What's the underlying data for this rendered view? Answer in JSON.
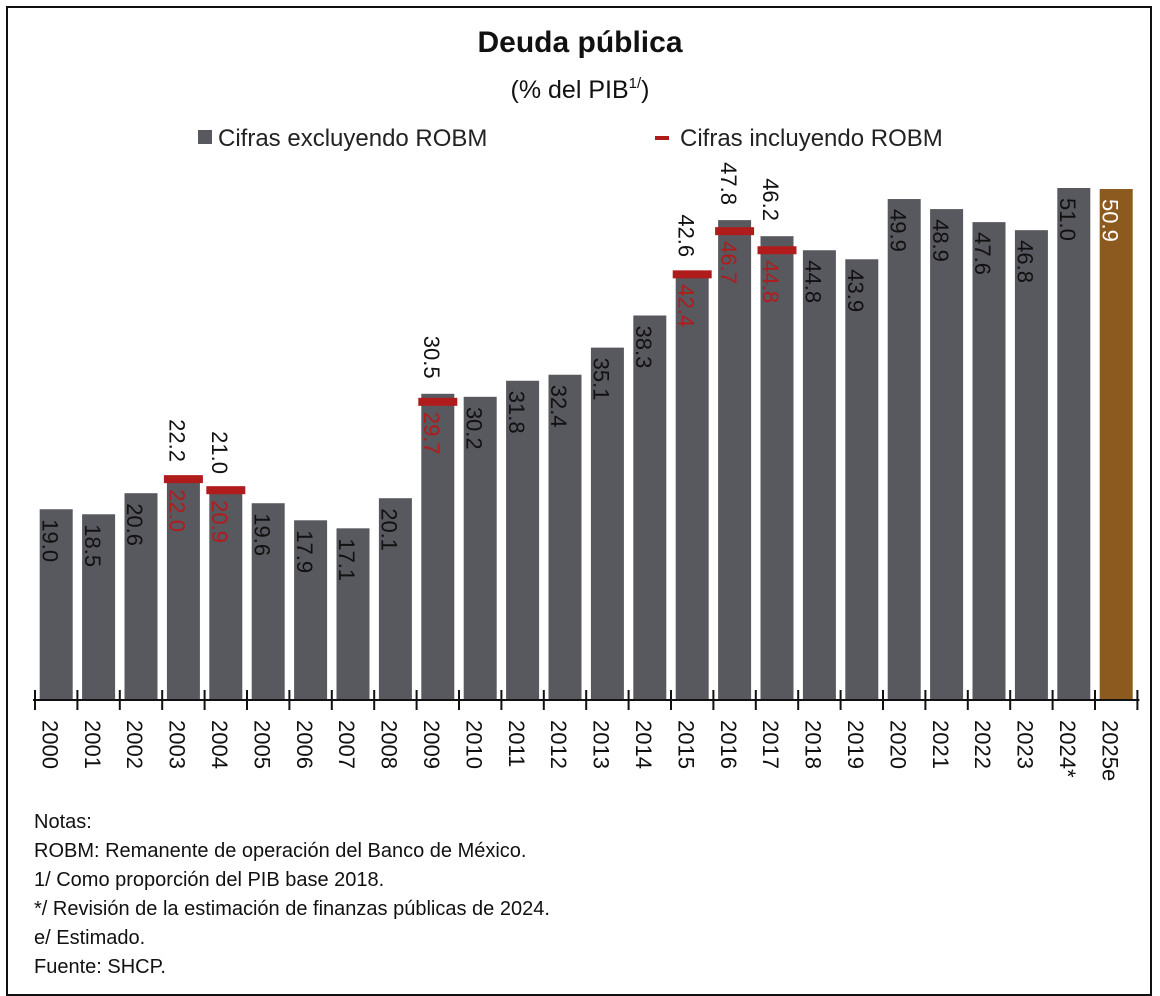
{
  "chart_data": {
    "type": "bar",
    "title": "Deuda pública",
    "subtitle": "(% del PIB",
    "subtitle_sup": "1/",
    "subtitle_close": ")",
    "legend": [
      {
        "label": "Cifras excluyendo ROBM",
        "color": "#58585f"
      },
      {
        "label": "Cifras incluyendo ROBM",
        "color": "#b01c1c"
      }
    ],
    "categories": [
      "2000",
      "2001",
      "2002",
      "2003",
      "2004",
      "2005",
      "2006",
      "2007",
      "2008",
      "2009",
      "2010",
      "2011",
      "2012",
      "2013",
      "2014",
      "2015",
      "2016",
      "2017",
      "2018",
      "2019",
      "2020",
      "2021",
      "2022",
      "2023",
      "2024*",
      "2025e"
    ],
    "series": [
      {
        "name": "Cifras excluyendo ROBM",
        "values": [
          19.0,
          18.5,
          20.6,
          22.2,
          21.0,
          19.6,
          17.9,
          17.1,
          20.1,
          30.5,
          30.2,
          31.8,
          32.4,
          35.1,
          38.3,
          42.6,
          47.8,
          46.2,
          44.8,
          43.9,
          49.9,
          48.9,
          47.6,
          46.8,
          51.0,
          50.9
        ],
        "labels": [
          "19.0",
          "18.5",
          "20.6",
          "22.2",
          "21.0",
          "19.6",
          "17.9",
          "17.1",
          "20.1",
          "30.5",
          "30.2",
          "31.8",
          "32.4",
          "35.1",
          "38.3",
          "42.6",
          "47.8",
          "46.2",
          "44.8",
          "43.9",
          "49.9",
          "48.9",
          "47.6",
          "46.8",
          "51.0",
          "50.9"
        ]
      },
      {
        "name": "Cifras incluyendo ROBM",
        "values": [
          null,
          null,
          null,
          22.0,
          20.9,
          null,
          null,
          null,
          null,
          29.7,
          null,
          null,
          null,
          null,
          null,
          42.4,
          46.7,
          44.8,
          null,
          null,
          null,
          null,
          null,
          null,
          null,
          null
        ],
        "labels": [
          null,
          null,
          null,
          "22.0",
          "20.9",
          null,
          null,
          null,
          null,
          "29.7",
          null,
          null,
          null,
          null,
          null,
          "42.4",
          "46.7",
          "44.8",
          null,
          null,
          null,
          null,
          null,
          null,
          null,
          null
        ]
      }
    ],
    "estimated_color": "#8c5a1f",
    "bar_color": "#58585f",
    "robm_color": "#b01c1c",
    "ylim": [
      0,
      51.0
    ],
    "grid": false
  },
  "notes": [
    "Notas:",
    "ROBM: Remanente de operación del Banco de México.",
    "1/ Como proporción del PIB base 2018.",
    "*/ Revisión de la estimación de finanzas públicas de 2024.",
    "e/ Estimado.",
    "Fuente: SHCP."
  ]
}
